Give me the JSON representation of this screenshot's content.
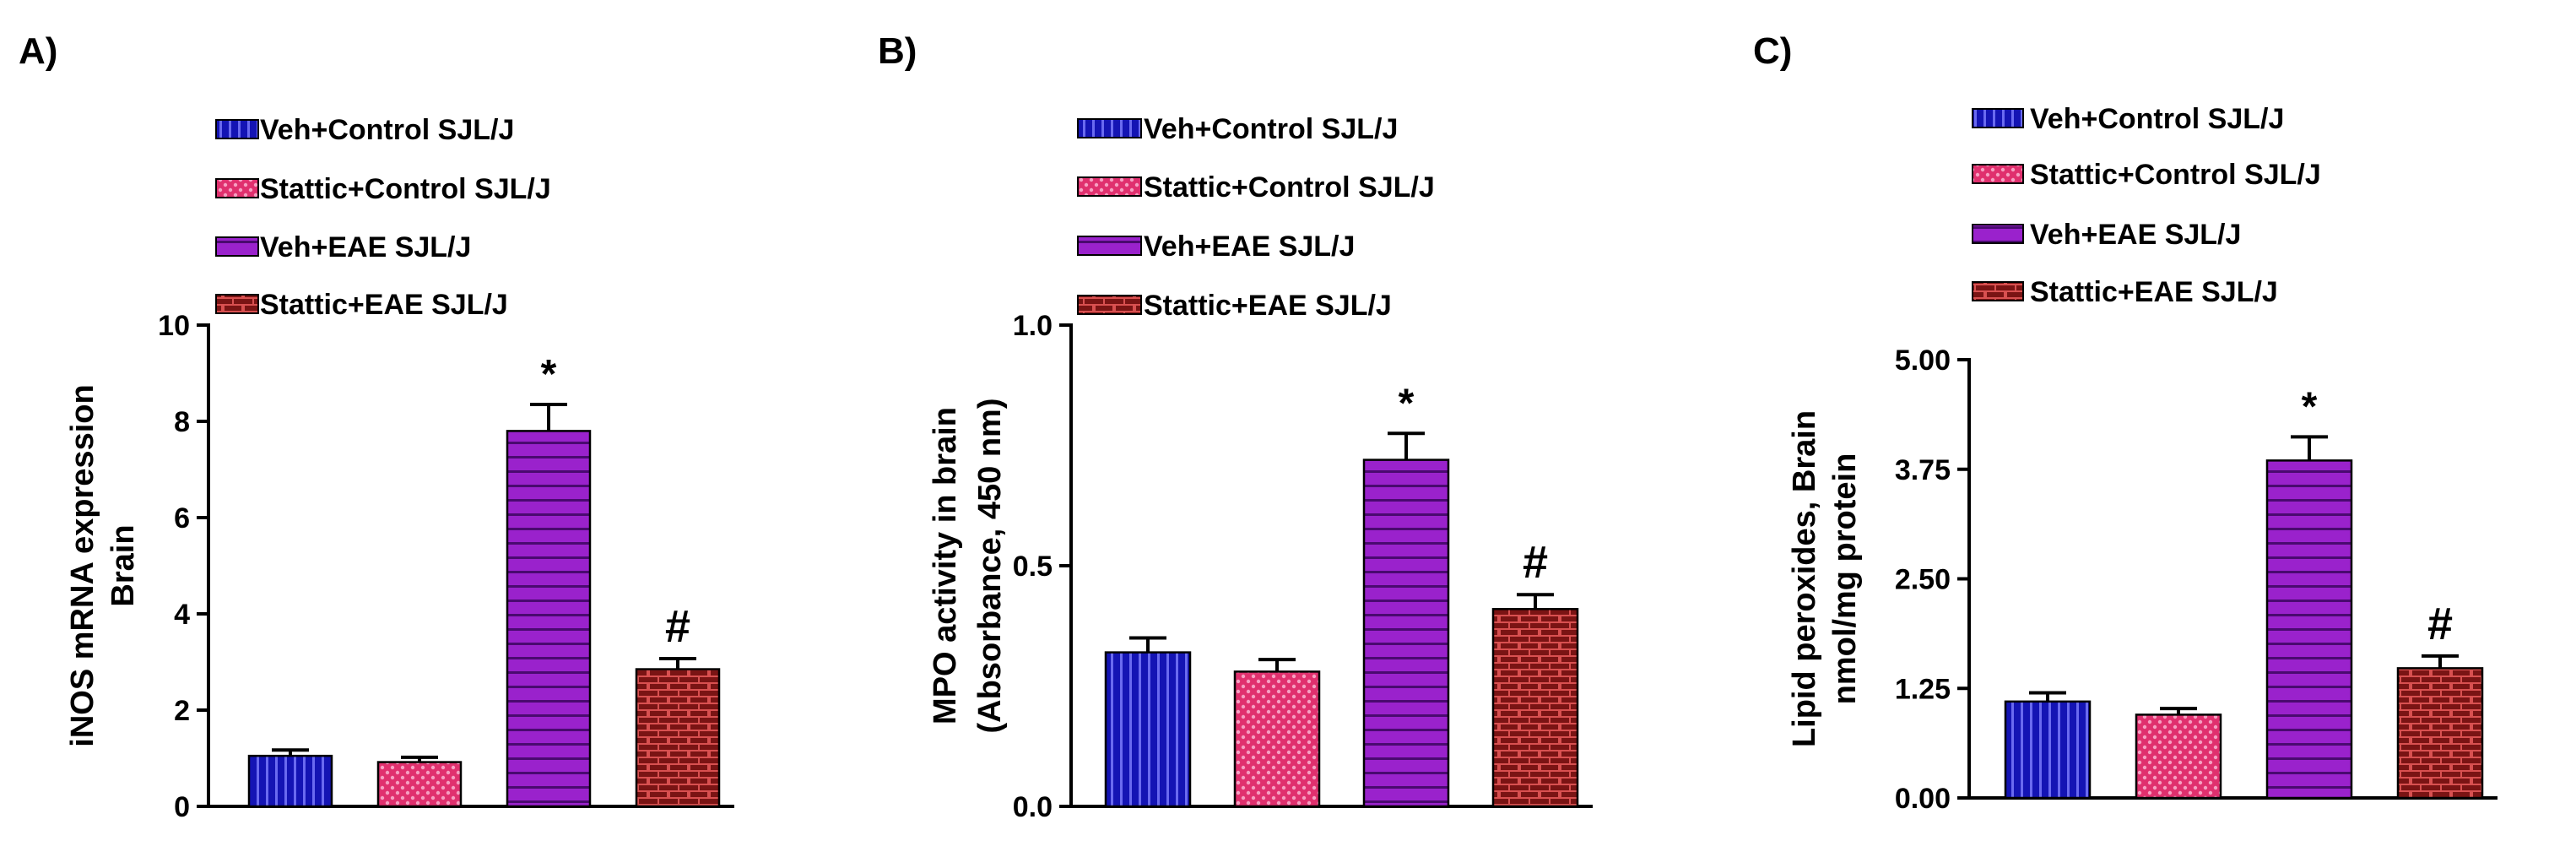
{
  "figure": {
    "series_colors": [
      "#1414b4",
      "#e0306e",
      "#9a22cc",
      "#7a1414"
    ],
    "series_patterns": [
      "vertical-stripes",
      "dots",
      "horizontal-stripes",
      "bricks"
    ]
  },
  "chart_data": [
    {
      "type": "bar",
      "panel_label": "A)",
      "title": "",
      "ylabel_lines": [
        "iNOS mRNA expression",
        "Brain"
      ],
      "xlabel": "",
      "categories": [
        "Veh+Control SJL/J",
        "Stattic+Control SJL/J",
        "Veh+EAE SJL/J",
        "Stattic+EAE SJL/J"
      ],
      "legend": [
        "Veh+Control SJL/J",
        "Stattic+Control SJL/J",
        "Veh+EAE SJL/J",
        "Stattic+EAE SJL/J"
      ],
      "values": [
        1.05,
        0.92,
        7.8,
        2.85
      ],
      "errors": [
        0.12,
        0.1,
        0.55,
        0.22
      ],
      "annotations": [
        "",
        "",
        "*",
        "#"
      ],
      "ylim": [
        0,
        10
      ],
      "yticks": [
        0,
        2,
        4,
        6,
        8,
        10
      ],
      "ytick_labels": [
        "0",
        "2",
        "4",
        "6",
        "8",
        "10"
      ]
    },
    {
      "type": "bar",
      "panel_label": "B)",
      "title": "",
      "ylabel_lines": [
        "MPO activity in brain",
        "(Absorbance, 450 nm)"
      ],
      "xlabel": "",
      "categories": [
        "Veh+Control SJL/J",
        "Stattic+Control SJL/J",
        "Veh+EAE SJL/J",
        "Stattic+EAE SJL/J"
      ],
      "legend": [
        "Veh+Control SJL/J",
        "Stattic+Control SJL/J",
        "Veh+EAE SJL/J",
        "Stattic+EAE SJL/J"
      ],
      "values": [
        0.32,
        0.28,
        0.72,
        0.41
      ],
      "errors": [
        0.03,
        0.025,
        0.055,
        0.03
      ],
      "annotations": [
        "",
        "",
        "*",
        "#"
      ],
      "ylim": [
        0,
        1
      ],
      "yticks": [
        0,
        0.5,
        1
      ],
      "ytick_labels": [
        "0.0",
        "0.5",
        "1.0"
      ]
    },
    {
      "type": "bar",
      "panel_label": "C)",
      "title": "",
      "ylabel_lines": [
        "Lipid peroxides, Brain",
        "nmol/mg protein"
      ],
      "xlabel": "",
      "categories": [
        "Veh+Control SJL/J",
        "Stattic+Control SJL/J",
        "Veh+EAE SJL/J",
        "Stattic+EAE SJL/J"
      ],
      "legend": [
        "Veh+Control SJL/J",
        "Stattic+Control SJL/J",
        "Veh+EAE SJL/J",
        "Stattic+EAE SJL/J"
      ],
      "values": [
        1.1,
        0.95,
        3.85,
        1.48
      ],
      "errors": [
        0.1,
        0.07,
        0.27,
        0.14
      ],
      "annotations": [
        "",
        "",
        "*",
        "#"
      ],
      "ylim": [
        0,
        5
      ],
      "yticks": [
        0,
        1.25,
        2.5,
        3.75,
        5
      ],
      "ytick_labels": [
        "0.00",
        "1.25",
        "2.50",
        "3.75",
        "5.00"
      ]
    }
  ]
}
